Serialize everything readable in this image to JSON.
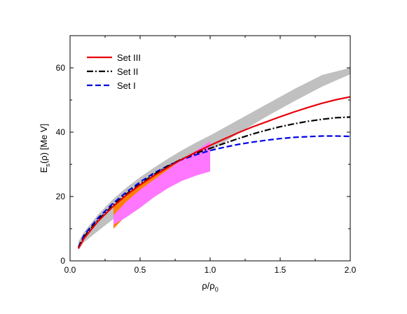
{
  "chart_data": {
    "type": "line",
    "title": "",
    "xlabel": {
      "base": "ρ/ρ",
      "sub": "0"
    },
    "ylabel": {
      "pre": "E",
      "sub": "s",
      "post": "(ρ) [Me V]"
    },
    "xlim": [
      0,
      2.0
    ],
    "ylim": [
      0,
      70
    ],
    "xticks": [
      0.0,
      0.5,
      1.0,
      1.5,
      2.0
    ],
    "xtick_labels": [
      "0.0",
      "0.5",
      "1.0",
      "1.5",
      "2.0"
    ],
    "yticks": [
      0,
      20,
      40,
      60
    ],
    "ytick_labels": [
      "0",
      "20",
      "40",
      "60"
    ],
    "grid": false,
    "legend_position": "top-left",
    "series": [
      {
        "name": "Set III",
        "color": "#e8000b",
        "dash": "solid",
        "x": [
          0.06,
          0.1,
          0.2,
          0.3,
          0.4,
          0.5,
          0.6,
          0.7,
          0.8,
          0.9,
          1.0,
          1.1,
          1.2,
          1.3,
          1.4,
          1.5,
          1.6,
          1.7,
          1.8,
          1.9,
          2.0
        ],
        "values": [
          3.8,
          7.0,
          12.3,
          16.6,
          20.4,
          23.6,
          26.5,
          29.1,
          31.6,
          33.8,
          35.9,
          37.9,
          39.8,
          41.6,
          43.2,
          44.8,
          46.3,
          47.7,
          49.0,
          50.1,
          51.0
        ]
      },
      {
        "name": "Set II",
        "color": "#000000",
        "dash": "dashdot",
        "x": [
          0.06,
          0.1,
          0.2,
          0.3,
          0.4,
          0.5,
          0.6,
          0.7,
          0.8,
          0.9,
          1.0,
          1.1,
          1.2,
          1.3,
          1.4,
          1.5,
          1.6,
          1.7,
          1.8,
          1.9,
          2.0
        ],
        "values": [
          4.0,
          7.5,
          12.7,
          17.0,
          20.7,
          23.9,
          26.9,
          29.5,
          31.7,
          33.5,
          35.0,
          36.5,
          38.0,
          39.4,
          40.6,
          41.7,
          42.6,
          43.4,
          44.0,
          44.5,
          44.7
        ]
      },
      {
        "name": "Set I",
        "color": "#0000e6",
        "dash": "dashed",
        "x": [
          0.06,
          0.1,
          0.2,
          0.3,
          0.4,
          0.5,
          0.6,
          0.7,
          0.8,
          0.9,
          1.0,
          1.1,
          1.2,
          1.3,
          1.4,
          1.5,
          1.6,
          1.7,
          1.8,
          1.9,
          2.0
        ],
        "values": [
          4.3,
          8.0,
          13.3,
          17.6,
          21.3,
          24.5,
          27.3,
          29.6,
          31.5,
          33.0,
          34.3,
          35.3,
          36.2,
          36.9,
          37.5,
          38.0,
          38.4,
          38.6,
          38.8,
          38.8,
          38.7
        ]
      }
    ],
    "bands": [
      {
        "color": "#c0c0c0",
        "x": [
          0.06,
          0.1,
          0.2,
          0.3,
          0.4,
          0.5,
          0.6,
          0.7,
          0.8,
          0.9,
          1.0,
          1.1,
          1.2,
          1.3,
          1.4,
          1.5,
          1.6,
          1.7,
          1.8,
          1.9,
          2.0
        ],
        "lower": [
          3.5,
          5.8,
          9.3,
          12.7,
          15.8,
          18.8,
          22.0,
          25.2,
          28.3,
          31.2,
          34.0,
          36.8,
          39.6,
          42.2,
          44.8,
          47.2,
          49.6,
          51.9,
          54.2,
          56.1,
          58.0
        ],
        "upper": [
          6.0,
          9.0,
          14.4,
          18.9,
          22.7,
          26.0,
          29.0,
          31.8,
          34.4,
          36.8,
          39.0,
          41.4,
          43.8,
          46.2,
          48.6,
          51.0,
          53.4,
          55.6,
          57.8,
          58.9,
          60.0
        ]
      },
      {
        "color": "#ff8000",
        "x": [
          0.31,
          0.4,
          0.5,
          0.6,
          0.7,
          0.8,
          0.88
        ],
        "lower": [
          10.0,
          14.0,
          17.4,
          20.4,
          23.0,
          25.3,
          27.0
        ],
        "upper": [
          17.2,
          20.5,
          23.6,
          26.4,
          28.9,
          31.0,
          32.4
        ]
      },
      {
        "color": "#ff77ff",
        "x": [
          0.31,
          0.4,
          0.5,
          0.6,
          0.7,
          0.8,
          0.9,
          1.0
        ],
        "lower": [
          11.2,
          13.5,
          16.5,
          19.8,
          22.6,
          24.9,
          26.5,
          27.8
        ],
        "upper": [
          14.2,
          18.3,
          22.1,
          25.3,
          28.4,
          31.4,
          34.3,
          37.2
        ]
      }
    ]
  }
}
